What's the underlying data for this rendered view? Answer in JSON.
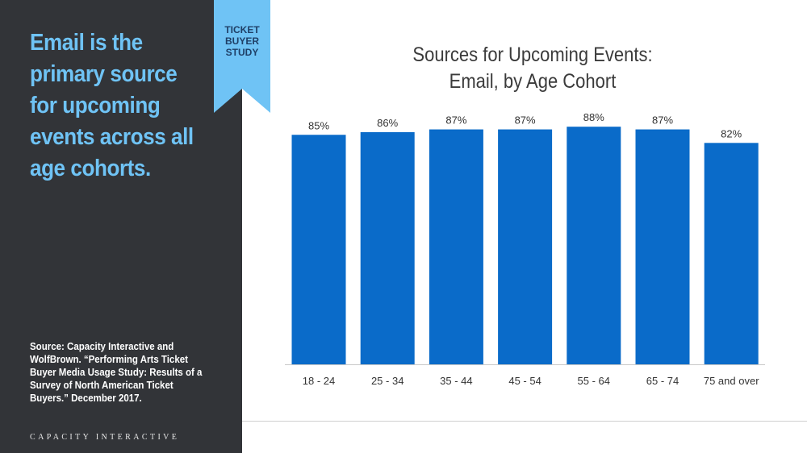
{
  "sidebar": {
    "headline": "Email is the primary source for upcoming events across all age cohorts.",
    "source": "Source: Capacity Interactive and WolfBrown. “Performing Arts Ticket Buyer Media Usage Study: Results of a Survey of North American Ticket Buyers.” December 2017.",
    "brand": "CAPACITY INTERACTIVE"
  },
  "ribbon": {
    "lines": [
      "TICKET",
      "BUYER",
      "STUDY"
    ]
  },
  "colors": {
    "sidebar_bg": "#323438",
    "headline": "#6fc3f5",
    "ribbon": "#6fc3f5",
    "bar": "#0a6bc9"
  },
  "chart_data": {
    "type": "bar",
    "title_lines": [
      "Sources for Upcoming Events:",
      "Email, by Age Cohort"
    ],
    "categories": [
      "18 - 24",
      "25 - 34",
      "35 - 44",
      "45 - 54",
      "55 - 64",
      "65 - 74",
      "75 and over"
    ],
    "values": [
      85,
      86,
      87,
      87,
      88,
      87,
      82
    ],
    "labels": [
      "85%",
      "86%",
      "87%",
      "87%",
      "88%",
      "87%",
      "82%"
    ],
    "xlabel": "",
    "ylabel": "",
    "ylim": [
      0,
      100
    ],
    "grid": false,
    "legend": "none"
  }
}
